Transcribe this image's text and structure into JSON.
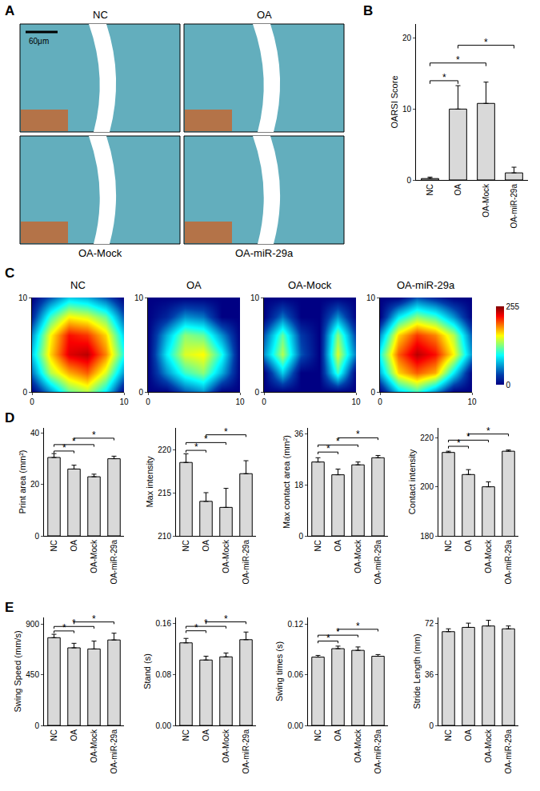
{
  "chart_data": [
    {
      "panel": "A",
      "type": "image",
      "images": [
        {
          "label": "NC"
        },
        {
          "label": "OA"
        },
        {
          "label": "OA-Mock"
        },
        {
          "label": "OA-miR-29a"
        }
      ],
      "scale_bar": "60μm"
    },
    {
      "panel": "B",
      "charts": [
        {
          "type": "bar",
          "y_label": "OARSI Score",
          "color": "#d9d9d9",
          "categories": [
            "NC",
            "OA",
            "OA-Mock",
            "OA-miR-29a"
          ],
          "values": [
            0.2,
            10,
            10.8,
            1
          ],
          "errors": [
            0.2,
            3.3,
            3,
            0.8
          ],
          "ylim": [
            0,
            22
          ],
          "yticks": [
            0,
            10,
            20
          ],
          "significance": [
            {
              "pair": [
                0,
                1
              ],
              "y": 14,
              "label": "*"
            },
            {
              "pair": [
                0,
                2
              ],
              "y": 16.5,
              "label": "*"
            },
            {
              "pair": [
                1,
                3
              ],
              "y": 19,
              "label": "*"
            }
          ]
        }
      ]
    },
    {
      "panel": "C",
      "type": "heatmap",
      "x": [
        0,
        2,
        4,
        6,
        8,
        10
      ],
      "y": [
        0,
        2,
        4,
        6,
        8,
        10
      ],
      "xlim": [
        0,
        10
      ],
      "ylim": [
        0,
        10
      ],
      "xticks": [
        0,
        10
      ],
      "yticks": [
        0,
        10
      ],
      "colorbar_range": [
        0,
        255
      ],
      "colorbar_ticks": [
        0,
        255
      ],
      "maps": [
        {
          "title": "NC",
          "z": [
            [
              0,
              60,
              120,
              140,
              90,
              0
            ],
            [
              50,
              140,
              180,
              200,
              150,
              60
            ],
            [
              80,
              170,
              230,
              240,
              190,
              100
            ],
            [
              60,
              160,
              220,
              210,
              170,
              80
            ],
            [
              20,
              110,
              160,
              150,
              120,
              40
            ],
            [
              0,
              40,
              80,
              70,
              40,
              0
            ]
          ]
        },
        {
          "title": "OA",
          "z": [
            [
              0,
              0,
              40,
              60,
              0,
              0
            ],
            [
              0,
              60,
              110,
              130,
              70,
              0
            ],
            [
              0,
              90,
              150,
              160,
              100,
              0
            ],
            [
              0,
              70,
              130,
              120,
              60,
              0
            ],
            [
              0,
              20,
              60,
              50,
              0,
              0
            ],
            [
              0,
              0,
              0,
              0,
              0,
              0
            ]
          ]
        },
        {
          "title": "OA-Mock",
          "z": [
            [
              0,
              0,
              0,
              0,
              0,
              0
            ],
            [
              0,
              80,
              0,
              0,
              110,
              0
            ],
            [
              60,
              140,
              40,
              0,
              150,
              50
            ],
            [
              40,
              120,
              30,
              0,
              130,
              30
            ],
            [
              0,
              50,
              0,
              0,
              60,
              0
            ],
            [
              0,
              0,
              0,
              0,
              0,
              0
            ]
          ]
        },
        {
          "title": "OA-miR-29a",
          "z": [
            [
              0,
              80,
              110,
              60,
              0,
              0
            ],
            [
              70,
              170,
              200,
              180,
              90,
              0
            ],
            [
              100,
              200,
              240,
              220,
              160,
              60
            ],
            [
              60,
              170,
              210,
              190,
              140,
              40
            ],
            [
              0,
              90,
              130,
              110,
              60,
              0
            ],
            [
              0,
              0,
              40,
              20,
              0,
              0
            ]
          ]
        }
      ]
    },
    {
      "panel": "D",
      "charts": [
        {
          "type": "bar",
          "y_label": "Print area (mm²)",
          "color": "#d9d9d9",
          "categories": [
            "NC",
            "OA",
            "OA-Mock",
            "OA-miR-29a"
          ],
          "values": [
            30.5,
            26,
            23,
            30
          ],
          "errors": [
            1.5,
            1.5,
            1,
            1
          ],
          "ylim": [
            0,
            42
          ],
          "yticks": [
            0,
            20,
            40
          ],
          "significance": [
            {
              "pair": [
                0,
                1
              ],
              "y": 33,
              "label": "*"
            },
            {
              "pair": [
                0,
                2
              ],
              "y": 35.5,
              "label": "*"
            },
            {
              "pair": [
                1,
                3
              ],
              "y": 38,
              "label": "*"
            }
          ]
        },
        {
          "type": "bar",
          "y_label": "Max intensity",
          "color": "#d9d9d9",
          "categories": [
            "NC",
            "OA",
            "OA-Mock",
            "OA-miR-29a"
          ],
          "values": [
            218.5,
            214,
            213.3,
            217.2
          ],
          "errors": [
            1,
            1,
            2.2,
            1.5
          ],
          "ylim": [
            210,
            222.5
          ],
          "yticks": [
            210,
            215,
            220
          ],
          "significance": [
            {
              "pair": [
                0,
                1
              ],
              "y": 219.9,
              "label": "*"
            },
            {
              "pair": [
                0,
                2
              ],
              "y": 220.8,
              "label": "*"
            },
            {
              "pair": [
                1,
                3
              ],
              "y": 221.7,
              "label": "*"
            }
          ]
        },
        {
          "type": "bar",
          "y_label": "Max contact area (mm²)",
          "color": "#d9d9d9",
          "categories": [
            "NC",
            "OA",
            "OA-Mock",
            "OA-miR-29a"
          ],
          "values": [
            26,
            21.5,
            25,
            27.5
          ],
          "errors": [
            1.5,
            2,
            1,
            0.8
          ],
          "ylim": [
            0,
            38
          ],
          "yticks": [
            0,
            18,
            36
          ],
          "significance": [
            {
              "pair": [
                0,
                1
              ],
              "y": 29.5,
              "label": "*"
            },
            {
              "pair": [
                0,
                2
              ],
              "y": 32,
              "label": "*"
            },
            {
              "pair": [
                1,
                3
              ],
              "y": 34.5,
              "label": "*"
            }
          ]
        },
        {
          "type": "bar",
          "y_label": "Contact intensity",
          "color": "#d9d9d9",
          "categories": [
            "NC",
            "OA",
            "OA-Mock",
            "OA-miR-29a"
          ],
          "values": [
            214,
            205,
            200,
            214.5
          ],
          "errors": [
            0.5,
            2,
            2,
            0.5
          ],
          "ylim": [
            180,
            224
          ],
          "yticks": [
            180,
            200,
            220
          ],
          "significance": [
            {
              "pair": [
                0,
                1
              ],
              "y": 216.5,
              "label": "*"
            },
            {
              "pair": [
                0,
                2
              ],
              "y": 219,
              "label": "*"
            },
            {
              "pair": [
                1,
                3
              ],
              "y": 221.5,
              "label": "*"
            }
          ]
        }
      ]
    },
    {
      "panel": "E",
      "charts": [
        {
          "type": "bar",
          "y_label": "Swing Speed (mm/s)",
          "color": "#d9d9d9",
          "categories": [
            "NC",
            "OA",
            "OA-Mock",
            "OA-miR-29a"
          ],
          "values": [
            780,
            690,
            680,
            760
          ],
          "errors": [
            30,
            40,
            70,
            60
          ],
          "ylim": [
            0,
            960
          ],
          "yticks": [
            0,
            450,
            900
          ],
          "significance": [
            {
              "pair": [
                0,
                1
              ],
              "y": 840,
              "label": "*"
            },
            {
              "pair": [
                0,
                2
              ],
              "y": 880,
              "label": "*"
            },
            {
              "pair": [
                1,
                3
              ],
              "y": 920,
              "label": "*"
            }
          ]
        },
        {
          "type": "bar",
          "y_label": "Stand (s)",
          "color": "#d9d9d9",
          "categories": [
            "NC",
            "OA",
            "OA-Mock",
            "OA-miR-29a"
          ],
          "values": [
            0.13,
            0.103,
            0.108,
            0.135
          ],
          "errors": [
            0.007,
            0.006,
            0.006,
            0.012
          ],
          "ylim": [
            0,
            0.17
          ],
          "yticks": [
            {
              "value": 0,
              "label": "0.00"
            },
            {
              "value": 0.08,
              "label": "0.08"
            },
            {
              "value": 0.16,
              "label": "0.16"
            }
          ],
          "significance": [
            {
              "pair": [
                0,
                1
              ],
              "y": 0.149,
              "label": "*"
            },
            {
              "pair": [
                0,
                2
              ],
              "y": 0.156,
              "label": "*"
            },
            {
              "pair": [
                1,
                3
              ],
              "y": 0.163,
              "label": "*"
            }
          ]
        },
        {
          "type": "bar",
          "y_label": "Swing times (s)",
          "color": "#d9d9d9",
          "categories": [
            "NC",
            "OA",
            "OA-Mock",
            "OA-miR-29a"
          ],
          "values": [
            0.081,
            0.091,
            0.089,
            0.082
          ],
          "errors": [
            0.002,
            0.003,
            0.004,
            0.002
          ],
          "ylim": [
            0,
            0.128
          ],
          "yticks": [
            {
              "value": 0,
              "label": "0.00"
            },
            {
              "value": 0.06,
              "label": "0.06"
            },
            {
              "value": 0.12,
              "label": "0.12"
            }
          ],
          "significance": [
            {
              "pair": [
                0,
                1
              ],
              "y": 0.1,
              "label": "*"
            },
            {
              "pair": [
                0,
                2
              ],
              "y": 0.107,
              "label": "*"
            },
            {
              "pair": [
                1,
                3
              ],
              "y": 0.114,
              "label": "*"
            }
          ]
        },
        {
          "type": "bar",
          "y_label": "Stride Length (mm)",
          "color": "#d9d9d9",
          "categories": [
            "NC",
            "OA",
            "OA-Mock",
            "OA-miR-29a"
          ],
          "values": [
            66,
            69,
            70,
            68
          ],
          "errors": [
            2,
            3,
            4,
            2
          ],
          "ylim": [
            0,
            76
          ],
          "yticks": [
            0,
            36,
            72
          ],
          "significance": []
        }
      ]
    }
  ]
}
